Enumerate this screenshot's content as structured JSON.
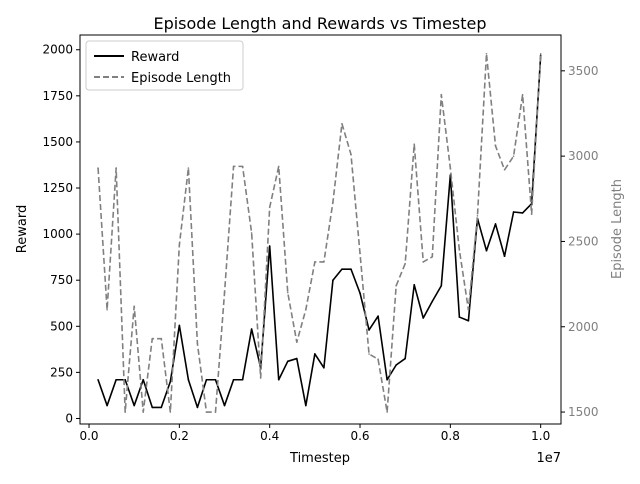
{
  "chart_data": {
    "type": "line",
    "title": "Episode Length and Rewards vs Timestep",
    "xlabel": "Timestep",
    "x_offset_label": "1e7",
    "ylabel_left": "Reward",
    "ylabel_right": "Episode Length",
    "xlim": [
      -200000,
      10450000
    ],
    "ylim_left": [
      -30,
      2080
    ],
    "ylim_right": [
      1430,
      3710
    ],
    "x_ticks": [
      0,
      2000000,
      4000000,
      6000000,
      8000000,
      10000000
    ],
    "x_tick_labels": [
      "0.0",
      "0.2",
      "0.4",
      "0.6",
      "0.8",
      "1.0"
    ],
    "y_left_ticks": [
      0,
      250,
      500,
      750,
      1000,
      1250,
      1500,
      1750,
      2000
    ],
    "y_left_tick_labels": [
      "0",
      "250",
      "500",
      "750",
      "1000",
      "1250",
      "1500",
      "1750",
      "2000"
    ],
    "y_right_ticks": [
      1500,
      2000,
      2500,
      3000,
      3500
    ],
    "y_right_tick_labels": [
      "1500",
      "2000",
      "2500",
      "3000",
      "3500"
    ],
    "legend_position": "upper-left",
    "grid": false,
    "colors": {
      "reward": "#000000",
      "episode_length": "#808080",
      "right_axis_text": "#808080"
    },
    "x": [
      200000,
      400000,
      600000,
      800000,
      1000000,
      1200000,
      1400000,
      1600000,
      1800000,
      2000000,
      2200000,
      2400000,
      2600000,
      2800000,
      3000000,
      3200000,
      3400000,
      3600000,
      3800000,
      4000000,
      4200000,
      4400000,
      4600000,
      4800000,
      5000000,
      5200000,
      5400000,
      5600000,
      5800000,
      6000000,
      6200000,
      6400000,
      6600000,
      6800000,
      7000000,
      7200000,
      7400000,
      7600000,
      7800000,
      8000000,
      8200000,
      8400000,
      8600000,
      8800000,
      9000000,
      9200000,
      9400000,
      9600000,
      9800000,
      10000000
    ],
    "series": [
      {
        "name": "Reward",
        "axis": "left",
        "style": "solid",
        "values": [
          210,
          70,
          210,
          210,
          70,
          210,
          60,
          60,
          200,
          505,
          210,
          60,
          210,
          210,
          70,
          210,
          210,
          485,
          275,
          935,
          210,
          310,
          325,
          70,
          350,
          275,
          750,
          810,
          810,
          680,
          480,
          555,
          210,
          290,
          325,
          725,
          545,
          635,
          720,
          1320,
          550,
          530,
          1085,
          910,
          1055,
          880,
          1120,
          1115,
          1165,
          1970
        ]
      },
      {
        "name": "Episode Length",
        "axis": "right",
        "style": "dashed",
        "values": [
          2930,
          2100,
          2930,
          1500,
          2120,
          1500,
          1930,
          1930,
          1500,
          2480,
          2930,
          1900,
          1500,
          1500,
          2200,
          2940,
          2940,
          2550,
          1700,
          2700,
          2940,
          2200,
          1910,
          2100,
          2380,
          2380,
          2730,
          3190,
          3010,
          2430,
          1840,
          1810,
          1500,
          2240,
          2370,
          3070,
          2380,
          2410,
          3360,
          2930,
          2450,
          2100,
          2650,
          3600,
          3060,
          2920,
          3000,
          3360,
          2660,
          3600
        ]
      }
    ]
  }
}
